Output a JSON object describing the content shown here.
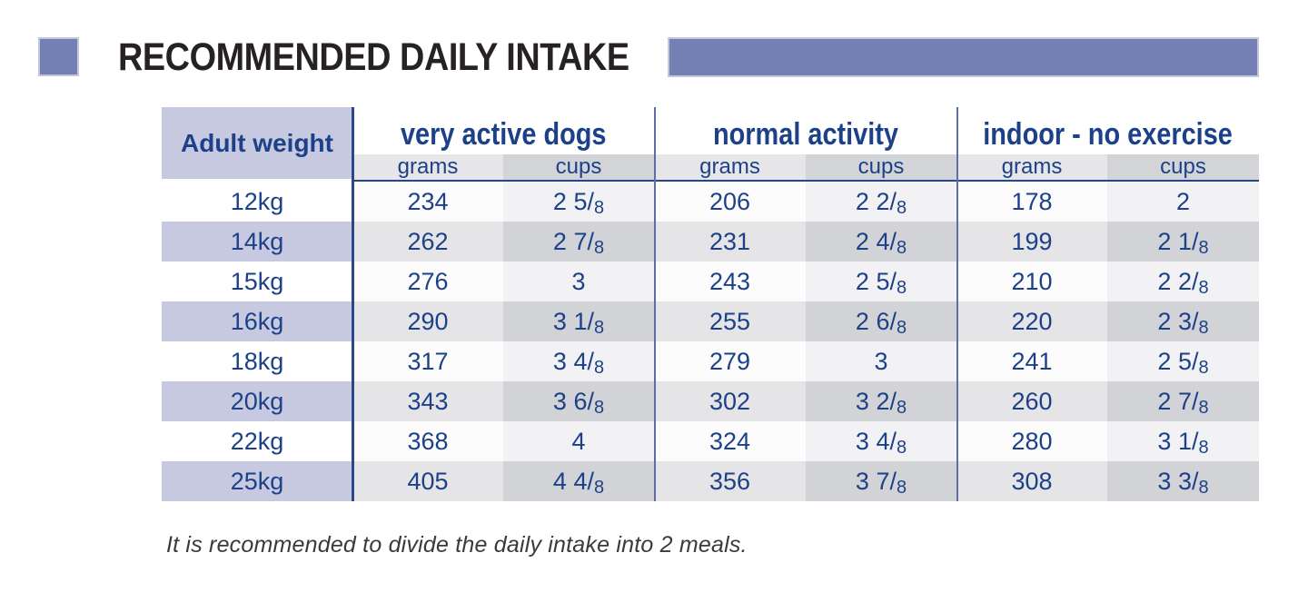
{
  "title": "RECOMMENDED DAILY INTAKE",
  "colors": {
    "accent_purple": "#7480b4",
    "lavender_stripe": "#c6c9df",
    "navy_text": "#1c4189",
    "grams_stripe": "#e5e5e7",
    "cups_stripe": "#d2d3d7",
    "subheader_rule_navy": "#27477f",
    "group_separator_blue": "#5e6ea4"
  },
  "table": {
    "weight_header": "Adult weight",
    "groups": [
      {
        "label": "very active dogs"
      },
      {
        "label": "normal activity"
      },
      {
        "label": "indoor - no exercise"
      }
    ],
    "subheaders": {
      "grams": "grams",
      "cups": "cups"
    },
    "rows": [
      {
        "weight": "12kg",
        "very_active": {
          "grams": "234",
          "cups": "2 5/8"
        },
        "normal": {
          "grams": "206",
          "cups": "2 2/8"
        },
        "indoor": {
          "grams": "178",
          "cups": "2"
        }
      },
      {
        "weight": "14kg",
        "very_active": {
          "grams": "262",
          "cups": "2 7/8"
        },
        "normal": {
          "grams": "231",
          "cups": "2 4/8"
        },
        "indoor": {
          "grams": "199",
          "cups": "2 1/8"
        }
      },
      {
        "weight": "15kg",
        "very_active": {
          "grams": "276",
          "cups": "3"
        },
        "normal": {
          "grams": "243",
          "cups": "2 5/8"
        },
        "indoor": {
          "grams": "210",
          "cups": "2 2/8"
        }
      },
      {
        "weight": "16kg",
        "very_active": {
          "grams": "290",
          "cups": "3 1/8"
        },
        "normal": {
          "grams": "255",
          "cups": "2 6/8"
        },
        "indoor": {
          "grams": "220",
          "cups": "2 3/8"
        }
      },
      {
        "weight": "18kg",
        "very_active": {
          "grams": "317",
          "cups": "3 4/8"
        },
        "normal": {
          "grams": "279",
          "cups": "3"
        },
        "indoor": {
          "grams": "241",
          "cups": "2 5/8"
        }
      },
      {
        "weight": "20kg",
        "very_active": {
          "grams": "343",
          "cups": "3 6/8"
        },
        "normal": {
          "grams": "302",
          "cups": "3 2/8"
        },
        "indoor": {
          "grams": "260",
          "cups": "2 7/8"
        }
      },
      {
        "weight": "22kg",
        "very_active": {
          "grams": "368",
          "cups": "4"
        },
        "normal": {
          "grams": "324",
          "cups": "3 4/8"
        },
        "indoor": {
          "grams": "280",
          "cups": "3 1/8"
        }
      },
      {
        "weight": "25kg",
        "very_active": {
          "grams": "405",
          "cups": "4 4/8"
        },
        "normal": {
          "grams": "356",
          "cups": "3 7/8"
        },
        "indoor": {
          "grams": "308",
          "cups": "3 3/8"
        }
      }
    ]
  },
  "footer_note": "It is recommended to divide the daily intake into 2 meals."
}
